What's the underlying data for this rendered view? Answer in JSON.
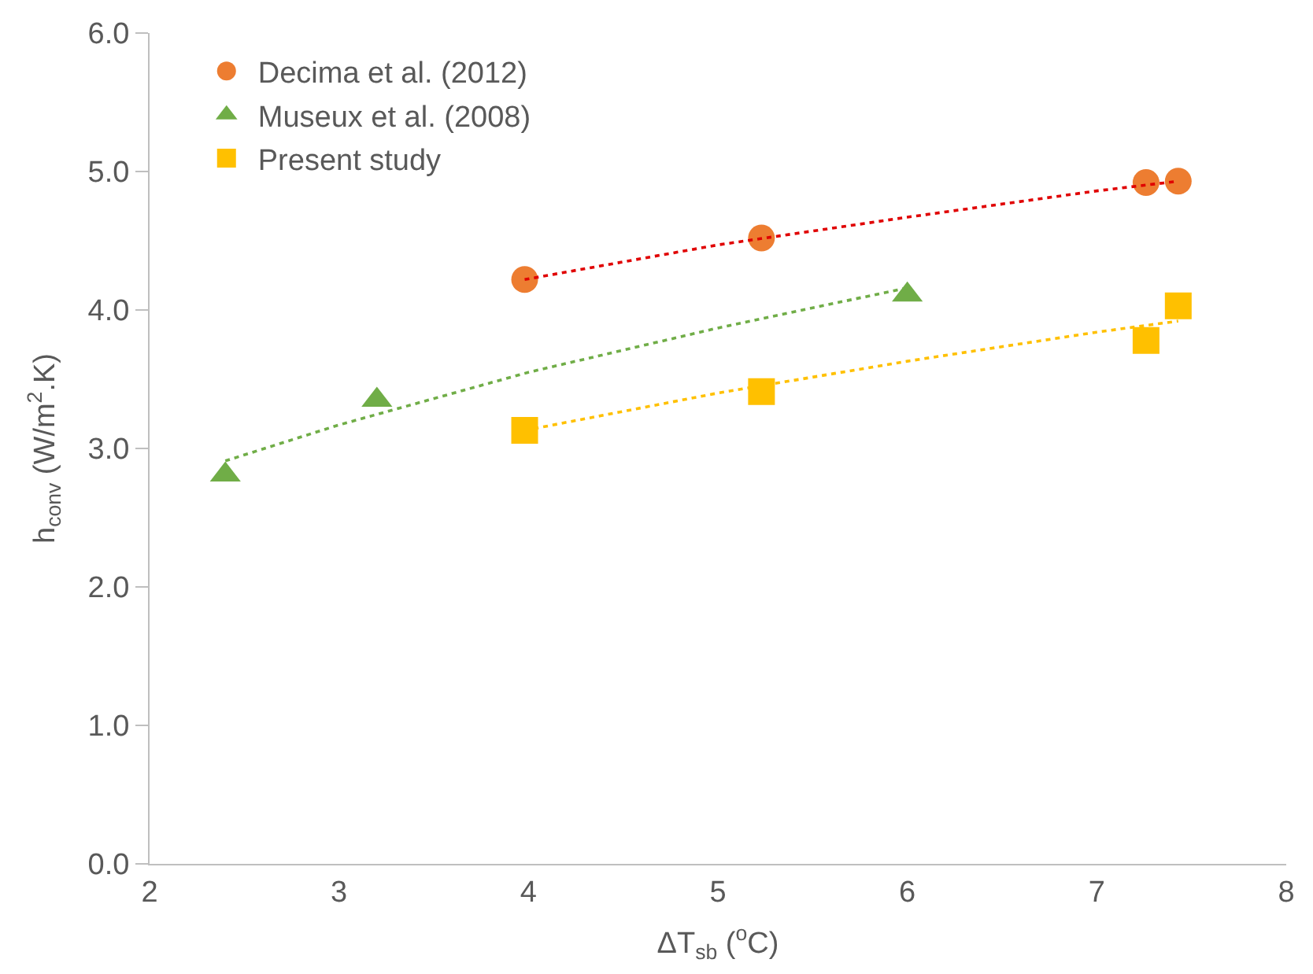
{
  "chart_data": {
    "type": "scatter",
    "xlabel": "ΔT$_{sb}$ ($^{o}$C)",
    "ylabel": "h$_{conv}$ (W/m$^{2}$.K)",
    "xlim": [
      2,
      8
    ],
    "ylim": [
      0,
      6
    ],
    "xticks": [
      2,
      3,
      4,
      5,
      6,
      7,
      8
    ],
    "yticks": [
      {
        "value": 0,
        "label": "0.0"
      },
      {
        "value": 1,
        "label": "1.0"
      },
      {
        "value": 2,
        "label": "2.0"
      },
      {
        "value": 3,
        "label": "3.0"
      },
      {
        "value": 4,
        "label": "4.0"
      },
      {
        "value": 5,
        "label": "5.0"
      },
      {
        "value": 6,
        "label": "6.0"
      }
    ],
    "legend": "top left",
    "series": [
      {
        "name": "Decima et al. (2012)",
        "color": "#ed7d31",
        "marker": "circle",
        "x": [
          3.98,
          5.23,
          7.26,
          7.43
        ],
        "values": [
          4.22,
          4.52,
          4.92,
          4.93
        ]
      },
      {
        "name": "Museux et al. (2008)",
        "color": "#70ad47",
        "marker": "triangle",
        "x": [
          2.4,
          3.2,
          6.0
        ],
        "values": [
          2.81,
          3.35,
          4.11
        ]
      },
      {
        "name": "Present study",
        "color": "#ffc000",
        "marker": "square",
        "x": [
          3.98,
          5.23,
          7.26,
          7.43
        ],
        "values": [
          3.13,
          3.41,
          3.78,
          4.03
        ]
      },
      {
        "type": "line",
        "color": "#e00000",
        "marker": "none",
        "line_style": "dotted",
        "x": [
          3.98,
          5,
          6,
          7,
          7.43
        ],
        "values": [
          4.22,
          4.47,
          4.67,
          4.86,
          4.93
        ]
      },
      {
        "type": "line",
        "color": "#70ad47",
        "marker": "none",
        "line_style": "dotted",
        "x": [
          2.4,
          3,
          4,
          5,
          6
        ],
        "values": [
          2.91,
          3.17,
          3.55,
          3.87,
          4.16
        ]
      },
      {
        "type": "line",
        "color": "#ffc000",
        "marker": "none",
        "line_style": "dotted",
        "x": [
          3.98,
          5,
          6,
          7,
          7.43
        ],
        "values": [
          3.13,
          3.4,
          3.63,
          3.84,
          3.92
        ]
      }
    ]
  }
}
